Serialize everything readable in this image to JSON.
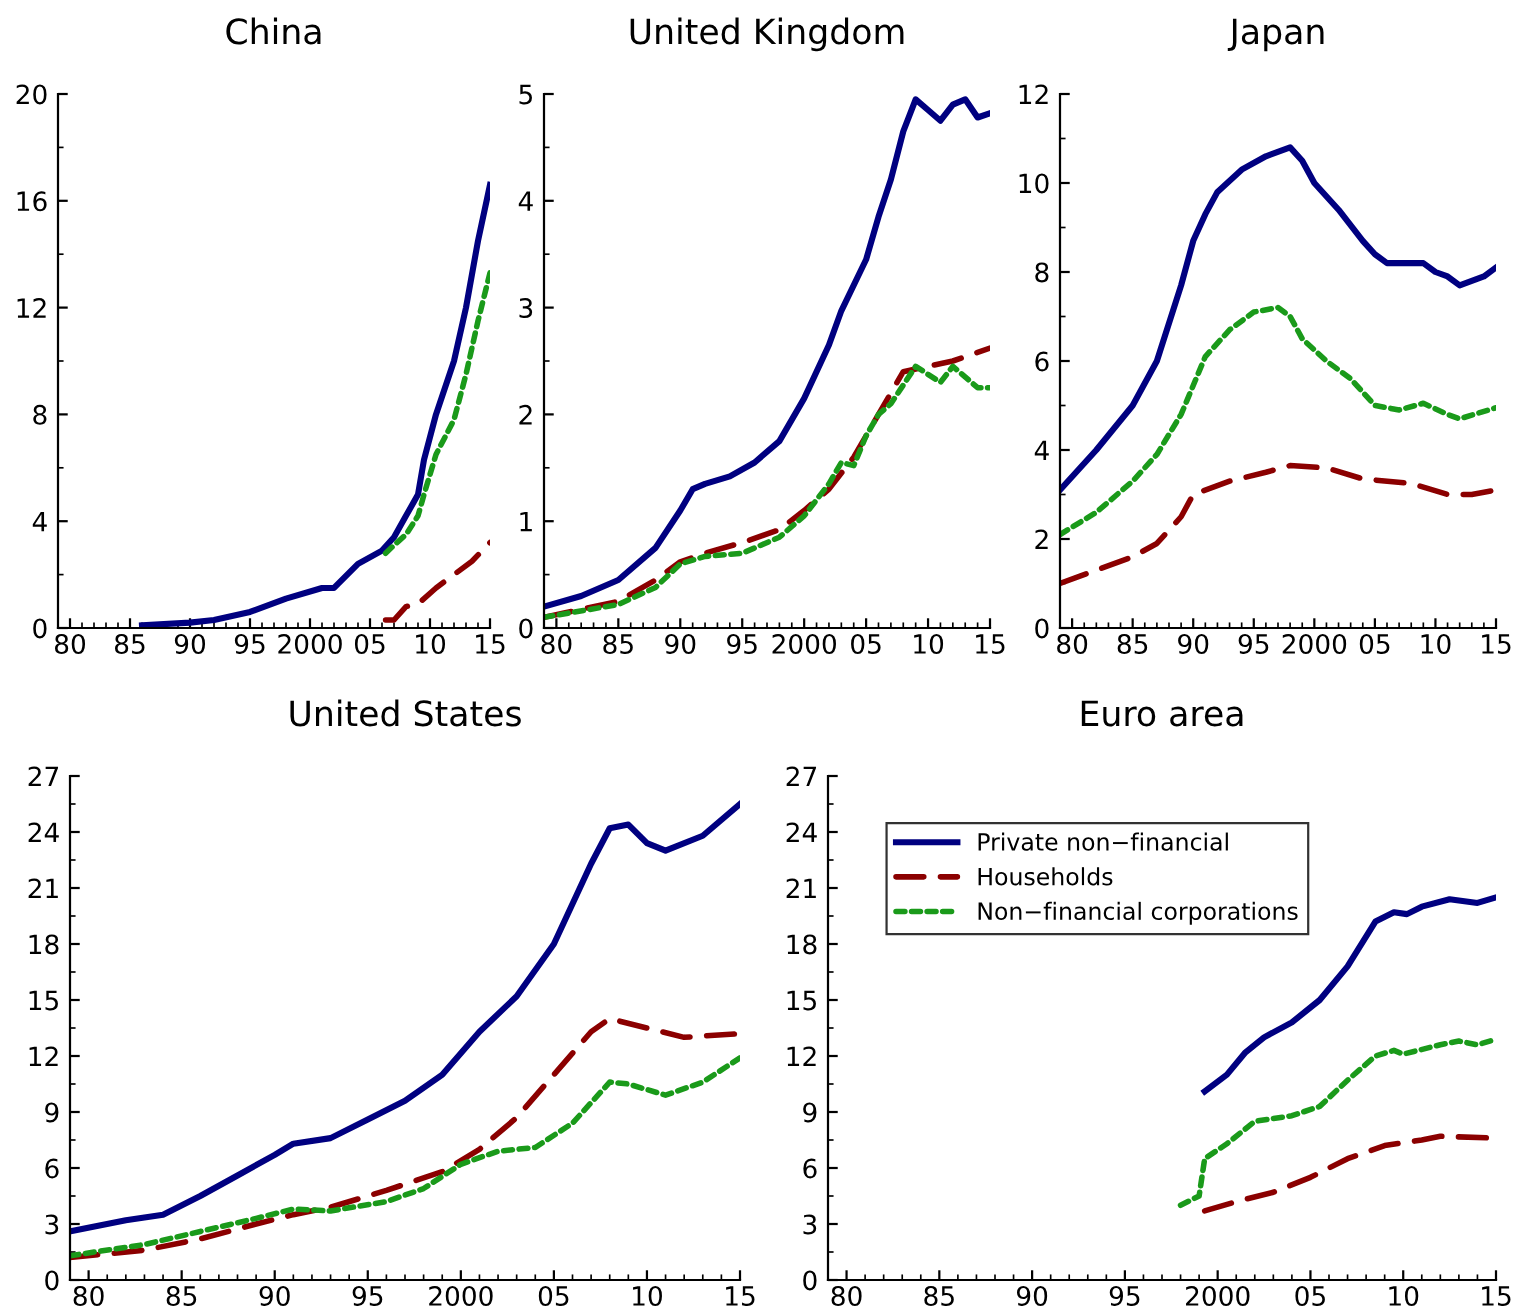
{
  "chart_data": [
    {
      "type": "line",
      "title": "China",
      "xlim": [
        1979,
        2015
      ],
      "xticks": [
        {
          "value": 1980,
          "label": "80"
        },
        {
          "value": 1985,
          "label": "85"
        },
        {
          "value": 1990,
          "label": "90"
        },
        {
          "value": 1995,
          "label": "95"
        },
        2000,
        {
          "value": 2005,
          "label": "05"
        },
        {
          "value": 2010,
          "label": "10"
        },
        {
          "value": 2015,
          "label": "15"
        }
      ],
      "ylim": [
        0,
        20
      ],
      "yticks": [
        0,
        4,
        8,
        12,
        16,
        20
      ],
      "grid": false,
      "series": [
        {
          "color": "#000080",
          "line_style": "solid",
          "x": [
            1986,
            1990,
            1992,
            1995,
            1998,
            2001,
            2002,
            2004,
            2006,
            2007,
            2008,
            2009,
            2009.5,
            2010.5,
            2012,
            2013,
            2014,
            2015
          ],
          "values": [
            0.1,
            0.2,
            0.3,
            0.6,
            1.1,
            1.5,
            1.5,
            2.4,
            2.9,
            3.4,
            4.2,
            5.0,
            6.3,
            8.0,
            10.0,
            12.0,
            14.5,
            16.6
          ]
        },
        {
          "color": "#8b0000",
          "line_style": "dashed",
          "x": [
            2006.3,
            2007,
            2008,
            2009,
            2010.5,
            2012,
            2013.5,
            2015
          ],
          "values": [
            0.3,
            0.3,
            0.8,
            0.9,
            1.5,
            2.0,
            2.5,
            3.2
          ]
        },
        {
          "color": "#1a9a1a",
          "line_style": "dotted",
          "x": [
            2006.3,
            2007,
            2008,
            2009,
            2009.5,
            2010.5,
            2012,
            2013,
            2014,
            2015
          ],
          "values": [
            2.8,
            3.1,
            3.5,
            4.2,
            5.0,
            6.5,
            7.8,
            9.5,
            11.5,
            13.3
          ]
        }
      ]
    },
    {
      "type": "line",
      "title": "United Kingdom",
      "xlim": [
        1979,
        2015
      ],
      "xticks": [
        {
          "value": 1980,
          "label": "80"
        },
        {
          "value": 1985,
          "label": "85"
        },
        {
          "value": 1990,
          "label": "90"
        },
        {
          "value": 1995,
          "label": "95"
        },
        2000,
        {
          "value": 2005,
          "label": "05"
        },
        {
          "value": 2010,
          "label": "10"
        },
        {
          "value": 2015,
          "label": "15"
        }
      ],
      "ylim": [
        0,
        5
      ],
      "yticks": [
        0,
        1,
        2,
        3,
        4,
        5
      ],
      "grid": false,
      "series": [
        {
          "color": "#000080",
          "line_style": "solid",
          "x": [
            1979,
            1982,
            1985,
            1988,
            1990,
            1991,
            1992,
            1994,
            1996,
            1998,
            2000,
            2002,
            2003,
            2005,
            2006,
            2007,
            2008,
            2009,
            2010,
            2011,
            2012,
            2013,
            2014,
            2015
          ],
          "values": [
            0.2,
            0.3,
            0.45,
            0.75,
            1.1,
            1.3,
            1.35,
            1.42,
            1.55,
            1.75,
            2.15,
            2.65,
            2.97,
            3.45,
            3.85,
            4.2,
            4.65,
            4.95,
            4.85,
            4.75,
            4.9,
            4.95,
            4.78,
            4.82
          ]
        },
        {
          "color": "#8b0000",
          "line_style": "dashed",
          "x": [
            1979,
            1985,
            1988,
            1990,
            1992,
            1995,
            1998,
            2000,
            2002,
            2004,
            2006,
            2008,
            2010,
            2012,
            2015
          ],
          "values": [
            0.1,
            0.25,
            0.45,
            0.62,
            0.7,
            0.8,
            0.92,
            1.1,
            1.3,
            1.6,
            2.0,
            2.4,
            2.45,
            2.5,
            2.62
          ]
        },
        {
          "color": "#1a9a1a",
          "line_style": "dotted",
          "x": [
            1979,
            1985,
            1988,
            1990,
            1992,
            1995,
            1998,
            2000,
            2002,
            2003,
            2004,
            2005,
            2006,
            2007,
            2009,
            2011,
            2012,
            2014,
            2015
          ],
          "values": [
            0.1,
            0.22,
            0.38,
            0.6,
            0.67,
            0.7,
            0.85,
            1.05,
            1.35,
            1.55,
            1.52,
            1.8,
            2.0,
            2.1,
            2.45,
            2.3,
            2.45,
            2.25,
            2.25
          ]
        }
      ]
    },
    {
      "type": "line",
      "title": "Japan",
      "xlim": [
        1979,
        2015
      ],
      "xticks": [
        {
          "value": 1980,
          "label": "80"
        },
        {
          "value": 1985,
          "label": "85"
        },
        {
          "value": 1990,
          "label": "90"
        },
        {
          "value": 1995,
          "label": "95"
        },
        2000,
        {
          "value": 2005,
          "label": "05"
        },
        {
          "value": 2010,
          "label": "10"
        },
        {
          "value": 2015,
          "label": "15"
        }
      ],
      "ylim": [
        0,
        12
      ],
      "yticks": [
        0,
        2,
        4,
        6,
        8,
        10,
        12
      ],
      "grid": false,
      "series": [
        {
          "color": "#000080",
          "line_style": "solid",
          "x": [
            1979,
            1982,
            1985,
            1987,
            1989,
            1990,
            1991,
            1992,
            1994,
            1996,
            1998,
            1999,
            2000,
            2002,
            2004,
            2005,
            2006,
            2008,
            2009,
            2010,
            2011,
            2012,
            2014,
            2015
          ],
          "values": [
            3.1,
            4.0,
            5.0,
            6.0,
            7.7,
            8.7,
            9.3,
            9.8,
            10.3,
            10.6,
            10.8,
            10.5,
            10.0,
            9.4,
            8.7,
            8.4,
            8.2,
            8.2,
            8.2,
            8.0,
            7.9,
            7.7,
            7.9,
            8.1
          ]
        },
        {
          "color": "#8b0000",
          "line_style": "dashed",
          "x": [
            1979,
            1982,
            1985,
            1987,
            1989,
            1990,
            1993,
            1996,
            1998,
            2001,
            2004,
            2008,
            2011,
            2013,
            2015
          ],
          "values": [
            1.0,
            1.3,
            1.6,
            1.9,
            2.5,
            3.0,
            3.3,
            3.5,
            3.65,
            3.6,
            3.35,
            3.25,
            3.0,
            3.0,
            3.1
          ]
        },
        {
          "color": "#1a9a1a",
          "line_style": "dotted",
          "x": [
            1979,
            1982,
            1985,
            1987,
            1989,
            1991,
            1993,
            1995,
            1997,
            1998,
            1999,
            2001,
            2003,
            2005,
            2007,
            2009,
            2011,
            2012,
            2015
          ],
          "values": [
            2.1,
            2.6,
            3.3,
            3.9,
            4.8,
            6.1,
            6.7,
            7.1,
            7.2,
            7.0,
            6.5,
            6.0,
            5.6,
            5.0,
            4.9,
            5.05,
            4.8,
            4.7,
            4.95
          ]
        }
      ]
    },
    {
      "type": "line",
      "title": "United States",
      "xlim": [
        1979,
        2015
      ],
      "xticks": [
        {
          "value": 1980,
          "label": "80"
        },
        {
          "value": 1985,
          "label": "85"
        },
        {
          "value": 1990,
          "label": "90"
        },
        {
          "value": 1995,
          "label": "95"
        },
        2000,
        {
          "value": 2005,
          "label": "05"
        },
        {
          "value": 2010,
          "label": "10"
        },
        {
          "value": 2015,
          "label": "15"
        }
      ],
      "ylim": [
        0,
        27
      ],
      "yticks": [
        0,
        3,
        6,
        9,
        12,
        15,
        18,
        21,
        24,
        27
      ],
      "grid": false,
      "series": [
        {
          "color": "#000080",
          "line_style": "solid",
          "x": [
            1979,
            1982,
            1984,
            1986,
            1988,
            1990,
            1991,
            1993,
            1995,
            1997,
            1999,
            2001,
            2003,
            2005,
            2007,
            2008,
            2009,
            2010,
            2011,
            2013,
            2015
          ],
          "values": [
            2.6,
            3.2,
            3.5,
            4.5,
            5.6,
            6.7,
            7.3,
            7.6,
            8.6,
            9.6,
            11.0,
            13.3,
            15.2,
            18.0,
            22.3,
            24.2,
            24.4,
            23.4,
            23.0,
            23.8,
            25.5
          ]
        },
        {
          "color": "#8b0000",
          "line_style": "dashed",
          "x": [
            1979,
            1983,
            1986,
            1989,
            1991,
            1993,
            1996,
            1999,
            2001,
            2003,
            2005,
            2007,
            2008,
            2010,
            2012,
            2015
          ],
          "values": [
            1.2,
            1.6,
            2.2,
            3.0,
            3.5,
            3.9,
            4.8,
            5.8,
            7.0,
            8.7,
            11.0,
            13.3,
            14.0,
            13.5,
            13.0,
            13.2
          ]
        },
        {
          "color": "#1a9a1a",
          "line_style": "dotted",
          "x": [
            1979,
            1983,
            1986,
            1989,
            1991,
            1993,
            1996,
            1998,
            2000,
            2002,
            2004,
            2006,
            2008,
            2009,
            2011,
            2013,
            2015
          ],
          "values": [
            1.3,
            1.9,
            2.6,
            3.3,
            3.8,
            3.7,
            4.2,
            4.9,
            6.2,
            6.9,
            7.1,
            8.4,
            10.6,
            10.5,
            9.9,
            10.6,
            11.9
          ]
        }
      ]
    },
    {
      "type": "line",
      "title": "Euro area",
      "xlim": [
        1979,
        2015
      ],
      "xticks": [
        {
          "value": 1980,
          "label": "80"
        },
        {
          "value": 1985,
          "label": "85"
        },
        {
          "value": 1990,
          "label": "90"
        },
        {
          "value": 1995,
          "label": "95"
        },
        2000,
        {
          "value": 2005,
          "label": "05"
        },
        {
          "value": 2010,
          "label": "10"
        },
        {
          "value": 2015,
          "label": "15"
        }
      ],
      "ylim": [
        0,
        27
      ],
      "yticks": [
        0,
        3,
        6,
        9,
        12,
        15,
        18,
        21,
        24,
        27
      ],
      "grid": false,
      "legend": "top left",
      "series": [
        {
          "name": "Private non−financial",
          "color": "#000080",
          "line_style": "solid",
          "x": [
            1999.3,
            2000.5,
            2001.5,
            2002.5,
            2004,
            2005.5,
            2007,
            2008.5,
            2009.5,
            2010.2,
            2011,
            2012.5,
            2014,
            2015
          ],
          "values": [
            10.1,
            11.0,
            12.2,
            13.0,
            13.8,
            15.0,
            16.8,
            19.2,
            19.7,
            19.6,
            20.0,
            20.4,
            20.2,
            20.5
          ]
        },
        {
          "name": "Households",
          "color": "#8b0000",
          "line_style": "dashed",
          "x": [
            1999.3,
            2001,
            2003,
            2005,
            2007,
            2009,
            2011,
            2012,
            2015
          ],
          "values": [
            3.7,
            4.2,
            4.7,
            5.5,
            6.5,
            7.2,
            7.5,
            7.7,
            7.6
          ]
        },
        {
          "name": "Non−financial corporations",
          "color": "#1a9a1a",
          "line_style": "dotted",
          "x": [
            1998,
            1999,
            1999.3,
            2000.5,
            2002,
            2004,
            2005.5,
            2007,
            2008.5,
            2009.5,
            2010,
            2012,
            2013,
            2014,
            2015
          ],
          "values": [
            4.0,
            4.5,
            6.5,
            7.3,
            8.5,
            8.8,
            9.3,
            10.7,
            12.0,
            12.3,
            12.1,
            12.6,
            12.8,
            12.6,
            12.9
          ]
        }
      ]
    }
  ]
}
